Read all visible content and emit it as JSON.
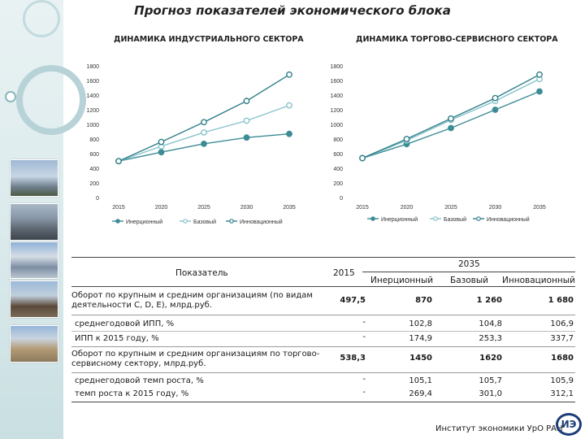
{
  "title": "Прогноз показателей экономического блока",
  "footer": "Институт экономики УрО РАН",
  "logo_text": "ИЭ",
  "colors": {
    "inertial": "#3c8c95",
    "base": "#86c3cb",
    "innovation": "#2f7e88",
    "table_line": "#444444"
  },
  "chart_data": [
    {
      "type": "line",
      "title": "ДИНАМИКА ИНДУСТРИАЛЬНОГО СЕКТОРА",
      "x": [
        2015,
        2020,
        2025,
        2030,
        2035
      ],
      "ylim": [
        0,
        1800
      ],
      "yticks": [
        0,
        200,
        400,
        600,
        800,
        1000,
        1200,
        1400,
        1600,
        1800
      ],
      "grid": false,
      "legend_position": "bottom",
      "series": [
        {
          "name": "Инерционный",
          "values": [
            497.5,
            620,
            735,
            820,
            870
          ]
        },
        {
          "name": "Базовый",
          "values": [
            497.5,
            700,
            890,
            1050,
            1260
          ]
        },
        {
          "name": "Инновационный",
          "values": [
            497.5,
            760,
            1030,
            1320,
            1680
          ]
        }
      ]
    },
    {
      "type": "line",
      "title": "ДИНАМИКА ТОРГОВО-СЕРВИСНОГО СЕКТОРА",
      "x": [
        2015,
        2020,
        2025,
        2030,
        2035
      ],
      "ylim": [
        0,
        1800
      ],
      "yticks": [
        0,
        200,
        400,
        600,
        800,
        1000,
        1200,
        1400,
        1600,
        1800
      ],
      "grid": false,
      "legend_position": "bottom",
      "series": [
        {
          "name": "Инерционный",
          "values": [
            538.3,
            730,
            950,
            1200,
            1450
          ]
        },
        {
          "name": "Базовый",
          "values": [
            538.3,
            780,
            1060,
            1320,
            1620
          ]
        },
        {
          "name": "Инновационный",
          "values": [
            538.3,
            800,
            1080,
            1360,
            1680
          ]
        }
      ]
    }
  ],
  "table": {
    "header_indicator": "Показатель",
    "header_base_year": "2015",
    "header_target_year": "2035",
    "header_scenarios": [
      "Инерционный",
      "Базовый",
      "Инновационный"
    ],
    "rows": [
      {
        "label": "Оборот по крупным и средним организациям (по видам деятельности C, D, E), млрд.руб.",
        "base": "497,5",
        "values": [
          "870",
          "1 260",
          "1 680"
        ]
      },
      {
        "label": "среднегодовой ИПП, %",
        "base": "-",
        "values": [
          "102,8",
          "104,8",
          "106,9"
        ]
      },
      {
        "label": "ИПП к 2015 году, %",
        "base": "-",
        "values": [
          "174,9",
          "253,3",
          "337,7"
        ]
      },
      {
        "label": "Оборот по крупным и средним организациям по торгово-сервисному сектору, млрд.руб.",
        "base": "538,3",
        "values": [
          "1450",
          "1620",
          "1680"
        ]
      },
      {
        "label": "среднегодовой темп роста, %",
        "base": "-",
        "values": [
          "105,1",
          "105,7",
          "105,9"
        ]
      },
      {
        "label": "темп роста к 2015 году, %",
        "base": "-",
        "values": [
          "269,4",
          "301,0",
          "312,1"
        ]
      }
    ]
  }
}
